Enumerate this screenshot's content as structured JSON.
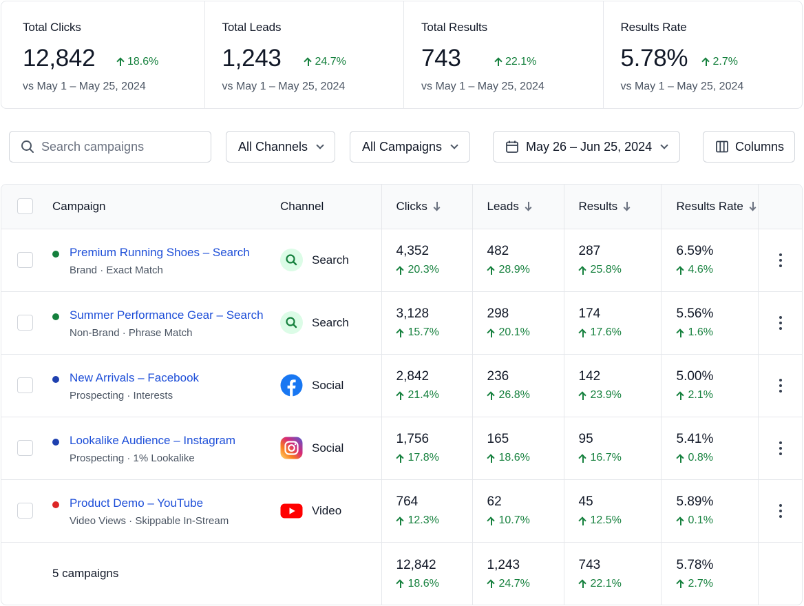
{
  "kpis": [
    {
      "title": "Total Clicks",
      "value": "12,842",
      "change": "18.6%",
      "comparison": "vs May 1 – May 25, 2024"
    },
    {
      "title": "Total Leads",
      "value": "1,243",
      "change": "24.7%",
      "comparison": "vs May 1 – May 25, 2024"
    },
    {
      "title": "Total Results",
      "value": "743",
      "change": "22.1%",
      "comparison": "vs May 1 – May 25, 2024"
    },
    {
      "title": "Results Rate",
      "value": "5.78%",
      "change": "2.7%",
      "comparison": "vs May 1 – May 25, 2024"
    }
  ],
  "toolbar": {
    "search_placeholder": "Search campaigns",
    "channel_filter": "All Channels",
    "campaign_filter": "All Campaigns",
    "date_range": "May 26 – Jun 25, 2024",
    "columns_label": "Columns"
  },
  "table": {
    "headers": {
      "campaign": "Campaign",
      "channel": "Channel",
      "clicks": "Clicks",
      "leads": "Leads",
      "results": "Results",
      "rate": "Results Rate"
    },
    "rows": [
      {
        "name": "Premium Running Shoes – Search",
        "sub": "Brand · Exact Match",
        "status_color": "#15803d",
        "channel": "Search",
        "channel_icon": "search-icon",
        "clicks": "4,352",
        "clicks_change": "20.3%",
        "leads": "482",
        "leads_change": "28.9%",
        "results": "287",
        "results_change": "25.8%",
        "rate": "6.59%",
        "rate_change": "4.6%"
      },
      {
        "name": "Summer Performance Gear – Search",
        "sub": "Non-Brand · Phrase Match",
        "status_color": "#15803d",
        "channel": "Search",
        "channel_icon": "search-icon",
        "clicks": "3,128",
        "clicks_change": "15.7%",
        "leads": "298",
        "leads_change": "20.1%",
        "results": "174",
        "results_change": "17.6%",
        "rate": "5.56%",
        "rate_change": "1.6%"
      },
      {
        "name": "New Arrivals – Facebook",
        "sub": "Prospecting · Interests",
        "status_color": "#1e40af",
        "channel": "Social",
        "channel_icon": "facebook-icon",
        "clicks": "2,842",
        "clicks_change": "21.4%",
        "leads": "236",
        "leads_change": "26.8%",
        "results": "142",
        "results_change": "23.9%",
        "rate": "5.00%",
        "rate_change": "2.1%"
      },
      {
        "name": "Lookalike Audience – Instagram",
        "sub": "Prospecting · 1% Lookalike",
        "status_color": "#1e40af",
        "channel": "Social",
        "channel_icon": "instagram-icon",
        "clicks": "1,756",
        "clicks_change": "17.8%",
        "leads": "165",
        "leads_change": "18.6%",
        "results": "95",
        "results_change": "16.7%",
        "rate": "5.41%",
        "rate_change": "0.8%"
      },
      {
        "name": "Product Demo – YouTube",
        "sub": "Video Views · Skippable In-Stream",
        "status_color": "#dc2626",
        "channel": "Video",
        "channel_icon": "youtube-icon",
        "clicks": "764",
        "clicks_change": "12.3%",
        "leads": "62",
        "leads_change": "10.7%",
        "results": "45",
        "results_change": "12.5%",
        "rate": "5.89%",
        "rate_change": "0.1%"
      }
    ],
    "total": {
      "label": "5 campaigns",
      "clicks": "12,842",
      "clicks_change": "18.6%",
      "leads": "1,243",
      "leads_change": "24.7%",
      "results": "743",
      "results_change": "22.1%",
      "rate": "5.78%",
      "rate_change": "2.7%"
    }
  },
  "colors": {
    "accent": "#1d4ed8",
    "positive": "#15803d",
    "border": "#e5e7eb"
  }
}
